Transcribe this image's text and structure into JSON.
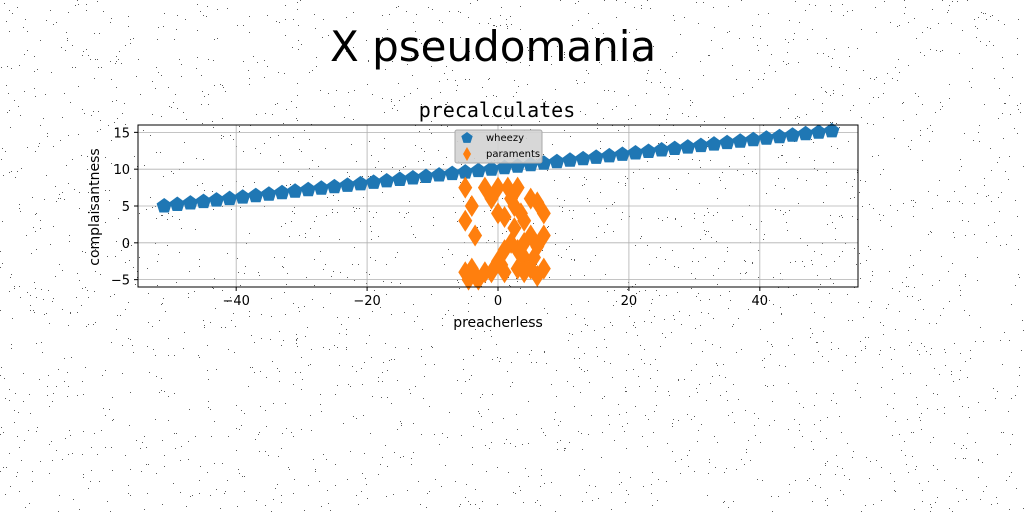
{
  "figure": {
    "suptitle": "X pseudomania"
  },
  "chart_data": {
    "type": "scatter",
    "title": "precalculates",
    "xlabel": "preacherless",
    "ylabel": "complaisantness",
    "xlim": [
      -55,
      55
    ],
    "ylim": [
      -6,
      16
    ],
    "xticks": [
      -40,
      -20,
      0,
      20,
      40
    ],
    "yticks": [
      -5,
      0,
      5,
      10,
      15
    ],
    "xtick_labels": [
      "−40",
      "−20",
      "0",
      "20",
      "40"
    ],
    "ytick_labels": [
      "−5",
      "0",
      "5",
      "10",
      "15"
    ],
    "grid": true,
    "legend": {
      "placement": "top-center"
    },
    "series": [
      {
        "name": "wheezy",
        "marker": "pentagon",
        "color": "#1f77b4",
        "x": [
          -51,
          -49,
          -47,
          -45,
          -43,
          -41,
          -39,
          -37,
          -35,
          -33,
          -31,
          -29,
          -27,
          -25,
          -23,
          -21,
          -19,
          -17,
          -15,
          -13,
          -11,
          -9,
          -7,
          -5,
          -3,
          -1,
          1,
          3,
          5,
          7,
          9,
          11,
          13,
          15,
          17,
          19,
          21,
          23,
          25,
          27,
          29,
          31,
          33,
          35,
          37,
          39,
          41,
          43,
          45,
          47,
          49,
          51
        ],
        "y": [
          5.0,
          5.2,
          5.4,
          5.6,
          5.8,
          6.0,
          6.2,
          6.4,
          6.6,
          6.8,
          7.0,
          7.2,
          7.4,
          7.6,
          7.8,
          8.0,
          8.2,
          8.4,
          8.6,
          8.8,
          9.0,
          9.2,
          9.4,
          9.6,
          9.8,
          10.0,
          10.2,
          10.4,
          10.6,
          10.8,
          11.0,
          11.2,
          11.4,
          11.6,
          11.8,
          12.0,
          12.2,
          12.4,
          12.6,
          12.8,
          13.0,
          13.2,
          13.4,
          13.6,
          13.8,
          14.0,
          14.2,
          14.4,
          14.6,
          14.8,
          15.0,
          15.2
        ]
      },
      {
        "name": "paraments",
        "marker": "thin_diamond",
        "color": "#ff7f0e",
        "x": [
          -5,
          -4,
          -5,
          -3.5,
          -4,
          -5,
          -3.5,
          -2,
          -1,
          -2,
          -1,
          0,
          0,
          1,
          0.5,
          1,
          1.5,
          2,
          2.5,
          3,
          3.5,
          4,
          2,
          3,
          4,
          5,
          3,
          4,
          5,
          6,
          7,
          6,
          7,
          5,
          6,
          7,
          4,
          3,
          -4.5,
          -3,
          2.5,
          5.5,
          1,
          0
        ],
        "y": [
          7.5,
          5,
          -4,
          -4.5,
          -3.5,
          3,
          1,
          7.5,
          6,
          -4,
          -4,
          7.5,
          4,
          3.5,
          -3,
          -4,
          7.5,
          6,
          5,
          7.5,
          4,
          3,
          0,
          -1,
          -2,
          -3.5,
          -1,
          0,
          1,
          -0.5,
          -3.5,
          -4.5,
          4,
          6,
          5.5,
          1,
          -4,
          -3.5,
          -5,
          -5,
          2,
          -2,
          -1,
          -2.5
        ]
      }
    ]
  }
}
